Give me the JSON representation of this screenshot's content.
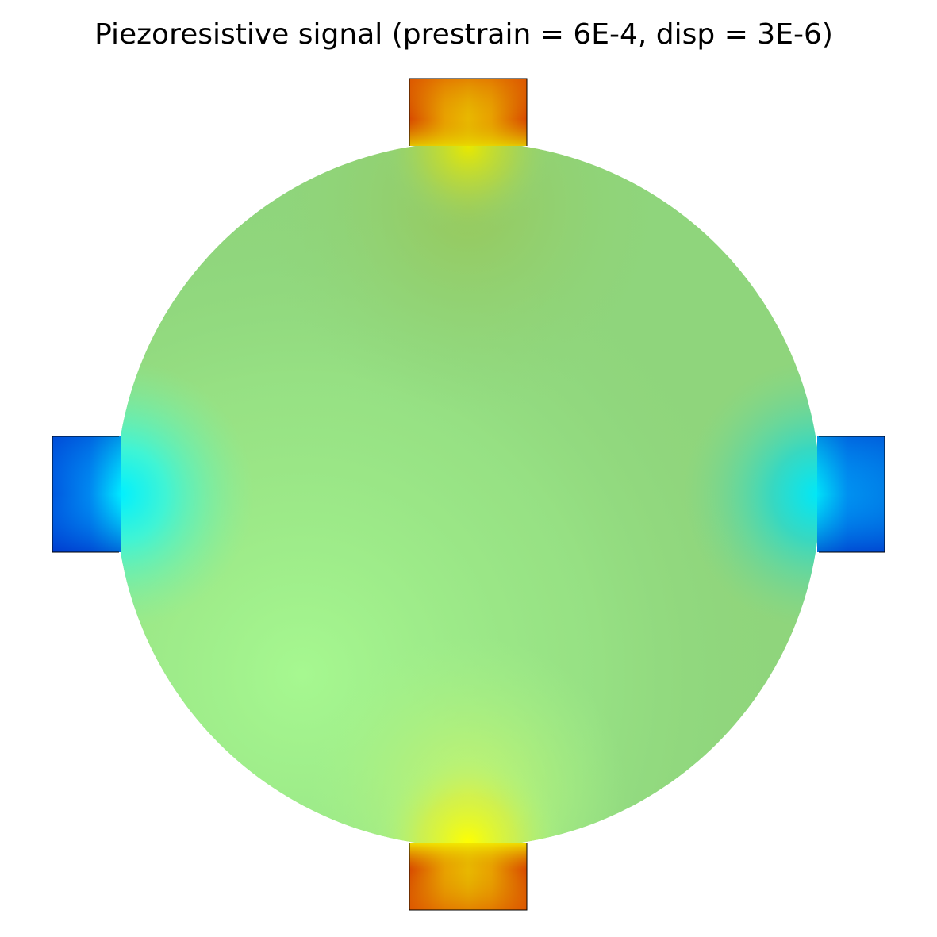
{
  "title": "Piezoresistive signal (prestrain = 6E-4, disp = 3E-6)",
  "colors": {
    "background": "#ffffff",
    "outline": "#000000",
    "membrane_base": "#8fd57c"
  },
  "parts": {
    "membrane": "circular-membrane",
    "contacts": [
      "contact-top",
      "contact-bottom",
      "contact-left",
      "contact-right"
    ]
  }
}
